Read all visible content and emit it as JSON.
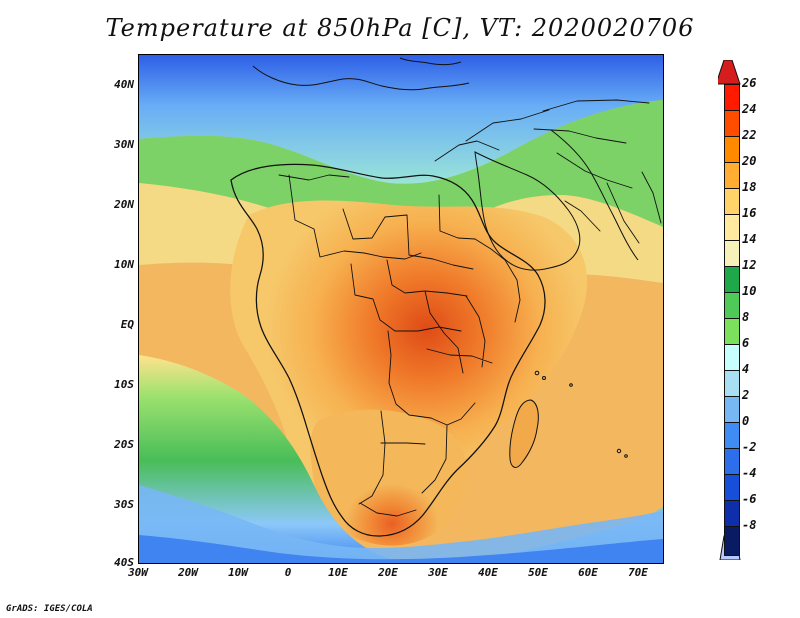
{
  "title": "Temperature at 850hPa [C], VT: 2020020706",
  "footer": "GrADS: IGES/COLA",
  "axes": {
    "y_labels": [
      "40N",
      "30N",
      "20N",
      "10N",
      "EQ",
      "10S",
      "20S",
      "30S",
      "40S"
    ],
    "x_labels": [
      "30W",
      "20W",
      "10W",
      "0",
      "10E",
      "20E",
      "30E",
      "40E",
      "50E",
      "60E",
      "70E"
    ]
  },
  "colorbar": {
    "labels": [
      "26",
      "24",
      "22",
      "20",
      "18",
      "16",
      "14",
      "12",
      "10",
      "8",
      "6",
      "4",
      "2",
      "0",
      "-2",
      "-4",
      "-6",
      "-8"
    ],
    "colors": [
      "#ff1a00",
      "#ff4d00",
      "#ff8a00",
      "#ffad33",
      "#ffd36a",
      "#ffeaa0",
      "#f6f1b8",
      "#1ea84a",
      "#4fca58",
      "#7ce05c",
      "#c7ffff",
      "#a9dff2",
      "#77b8f4",
      "#3f8df4",
      "#2d6fea",
      "#154fda",
      "#0e2fa9",
      "#091b62"
    ]
  },
  "colors": {
    "ocean_north": "#7ed66d",
    "north_cold": "#2f6ef0",
    "north_mid": "#5da6f6",
    "desert": "#f4cc72",
    "africa_orange": "#f2a240",
    "africa_red": "#ea5b1c",
    "south_ocean": "#54c45d",
    "south_cold": "#77b9f5",
    "south_polar": "#3a82f1",
    "border": "#111111"
  }
}
